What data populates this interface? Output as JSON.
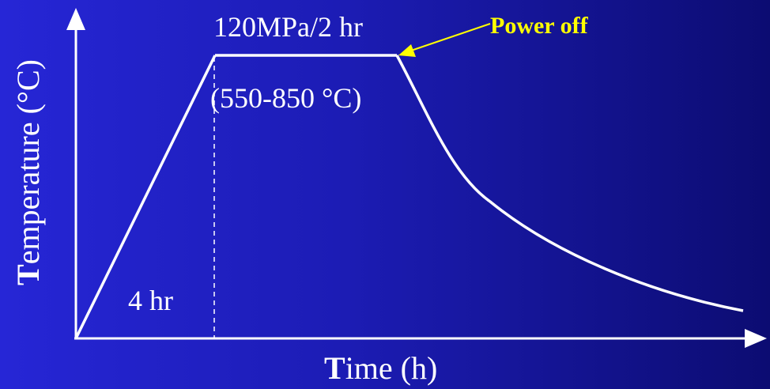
{
  "annotations": {
    "hold": "120MPa/2 hr",
    "temp_range": "(550-850 °C)",
    "ramp": "4 hr",
    "power_off": "Power off"
  },
  "axes": {
    "x_label_first": "T",
    "x_label_rest": "ime (h)",
    "y_label_first": "T",
    "y_label_rest": "emperature (°C)"
  },
  "colors": {
    "line": "#ffffff",
    "highlight": "#ffff00",
    "background_left": "#2626d6",
    "background_right": "#0c0c72"
  },
  "chart_data": {
    "type": "line",
    "series": [
      {
        "segments": [
          "ramp-up",
          "hold",
          "cool-down"
        ]
      }
    ]
  }
}
